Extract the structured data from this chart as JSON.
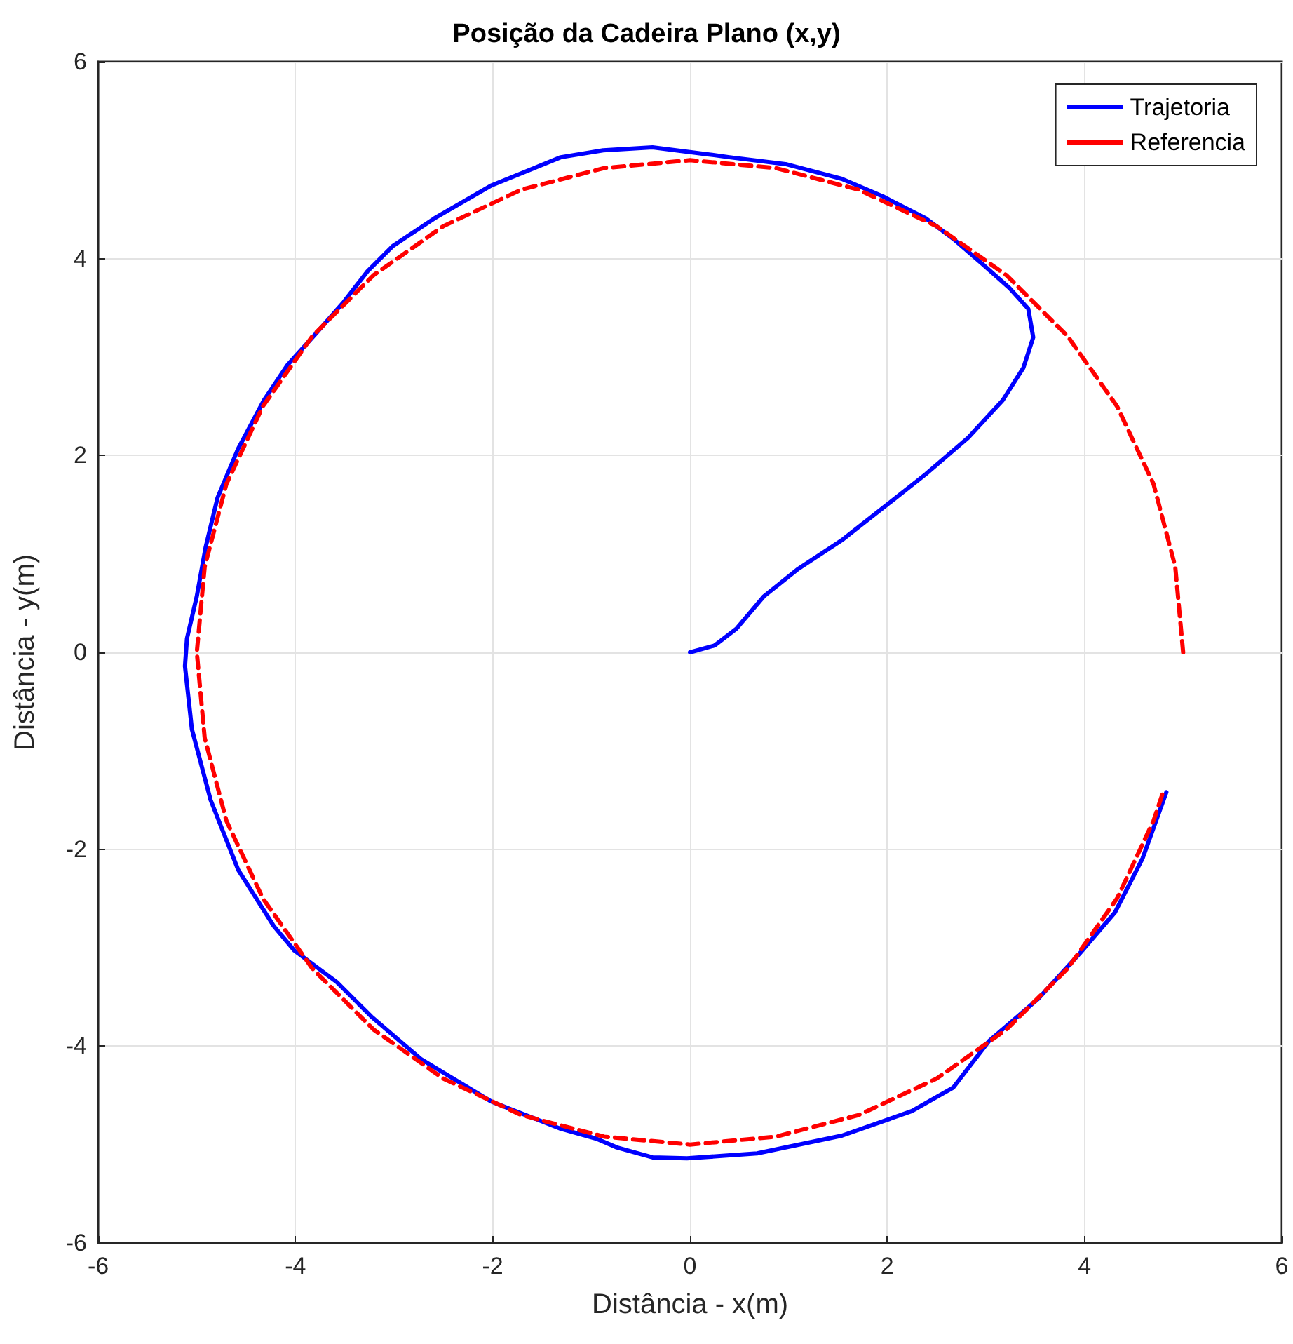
{
  "chart_data": {
    "type": "line",
    "title": "Posição da Cadeira Plano (x,y)",
    "xlabel": "Distância - x(m)",
    "ylabel": "Distância - y(m)",
    "xlim": [
      -6,
      6
    ],
    "ylim": [
      -6,
      6
    ],
    "xticks": [
      -6,
      -4,
      -2,
      0,
      2,
      4,
      6
    ],
    "yticks": [
      -6,
      -4,
      -2,
      0,
      2,
      4,
      6
    ],
    "grid": true,
    "legend": "top right",
    "series": [
      {
        "name": "Trajetoria",
        "color": "#0000ff",
        "line_style": "solid",
        "x": [
          0,
          0.25,
          0.47,
          0.75,
          1.1,
          1.54,
          1.96,
          2.39,
          2.82,
          3.17,
          3.38,
          3.48,
          3.43,
          3.24,
          2.96,
          2.67,
          2.39,
          1.96,
          1.54,
          0.97,
          0.4,
          0.18,
          -0.38,
          -0.88,
          -1.31,
          -2.02,
          -2.59,
          -3.01,
          -3.27,
          -3.51,
          -3.8,
          -4.08,
          -4.32,
          -4.58,
          -4.79,
          -4.91,
          -5.0,
          -5.1,
          -5.12,
          -5.05,
          -4.86,
          -4.58,
          -4.22,
          -4.01,
          -3.58,
          -3.23,
          -2.73,
          -2.02,
          -1.31,
          -0.95,
          -0.74,
          -0.38,
          -0.03,
          0.68,
          1.54,
          2.25,
          2.67,
          3.03,
          3.53,
          3.95,
          4.31,
          4.59,
          4.83
        ],
        "values": [
          0,
          0.07,
          0.24,
          0.57,
          0.85,
          1.14,
          1.47,
          1.81,
          2.18,
          2.56,
          2.89,
          3.2,
          3.49,
          3.7,
          3.95,
          4.2,
          4.41,
          4.63,
          4.81,
          4.96,
          5.03,
          5.06,
          5.13,
          5.1,
          5.03,
          4.74,
          4.41,
          4.13,
          3.87,
          3.56,
          3.23,
          2.92,
          2.56,
          2.07,
          1.57,
          1.07,
          0.57,
          0.14,
          -0.14,
          -0.78,
          -1.5,
          -2.21,
          -2.78,
          -3.03,
          -3.35,
          -3.7,
          -4.13,
          -4.56,
          -4.84,
          -4.94,
          -5.03,
          -5.13,
          -5.14,
          -5.09,
          -4.91,
          -4.66,
          -4.42,
          -3.95,
          -3.52,
          -3.06,
          -2.64,
          -2.09,
          -1.42
        ]
      },
      {
        "name": "Referencia",
        "color": "#ff0000",
        "line_style": "dashed",
        "x": [
          5,
          4.92,
          4.7,
          4.33,
          3.83,
          3.21,
          2.5,
          1.71,
          0.87,
          0,
          -0.87,
          -1.71,
          -2.5,
          -3.21,
          -3.83,
          -4.33,
          -4.7,
          -4.92,
          -5,
          -4.92,
          -4.7,
          -4.33,
          -3.83,
          -3.21,
          -2.5,
          -1.71,
          -0.87,
          0,
          0.87,
          1.71,
          2.5,
          3.21,
          3.83,
          4.33,
          4.7,
          4.81
        ],
        "values": [
          0,
          0.87,
          1.71,
          2.5,
          3.21,
          3.83,
          4.33,
          4.7,
          4.92,
          5,
          4.92,
          4.7,
          4.33,
          3.83,
          3.21,
          2.5,
          1.71,
          0.87,
          0,
          -0.87,
          -1.71,
          -2.5,
          -3.21,
          -3.83,
          -4.33,
          -4.7,
          -4.92,
          -5,
          -4.92,
          -4.7,
          -4.33,
          -3.83,
          -3.21,
          -2.5,
          -1.71,
          -1.38
        ]
      }
    ]
  }
}
